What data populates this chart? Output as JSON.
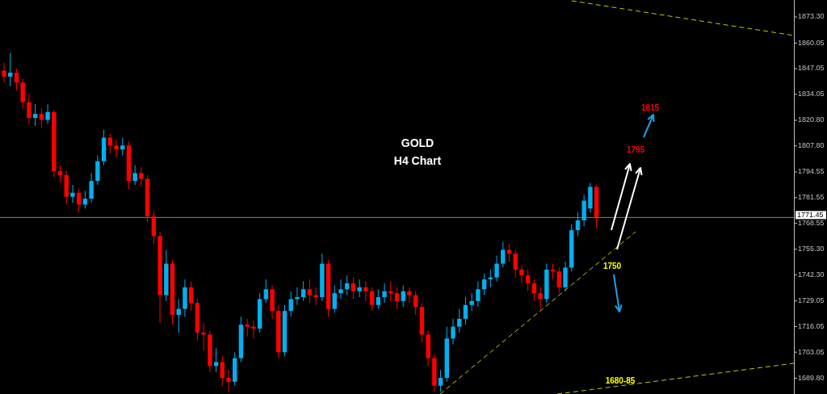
{
  "chart_data": {
    "type": "candlestick",
    "title": "GOLD",
    "subtitle": "H4 Chart",
    "categories": [
      null,
      null,
      null,
      null,
      null,
      null,
      null,
      null,
      null,
      null,
      null,
      null,
      null,
      null,
      null,
      null,
      null,
      null,
      null,
      null,
      null,
      null,
      null,
      null,
      null,
      null,
      null,
      null,
      null,
      null,
      null,
      null,
      null,
      null,
      null,
      null,
      null,
      null,
      null,
      null,
      null,
      null,
      null,
      null,
      null,
      null,
      null,
      null,
      null,
      null,
      null,
      null,
      null,
      null,
      null,
      null,
      null,
      null,
      null,
      null,
      null,
      null,
      null,
      null,
      null,
      null,
      null,
      null,
      null,
      null,
      null,
      null,
      null,
      null,
      null,
      null,
      null,
      null,
      null,
      null,
      null,
      null,
      null,
      null,
      null,
      null,
      null,
      null,
      null,
      null,
      null,
      null,
      null,
      null,
      null,
      null,
      null,
      null,
      null,
      null,
      null,
      null,
      null,
      null,
      null,
      null,
      null,
      null,
      null,
      null,
      null,
      null,
      null,
      null,
      null,
      null,
      null,
      null,
      null,
      null,
      null,
      null,
      null,
      null,
      null,
      null,
      null
    ],
    "ohlc": [
      [
        1846,
        1850,
        1840,
        1843
      ],
      [
        1843,
        1855,
        1838,
        1845
      ],
      [
        1845,
        1847,
        1836,
        1840
      ],
      [
        1840,
        1842,
        1827,
        1830
      ],
      [
        1830,
        1834,
        1819,
        1822
      ],
      [
        1822,
        1829,
        1818,
        1824
      ],
      [
        1824,
        1827,
        1817,
        1821
      ],
      [
        1821,
        1829,
        1819,
        1825
      ],
      [
        1825,
        1826,
        1792,
        1795
      ],
      [
        1795,
        1798,
        1789,
        1793
      ],
      [
        1793,
        1795,
        1778,
        1782
      ],
      [
        1782,
        1788,
        1779,
        1784
      ],
      [
        1784,
        1786,
        1774,
        1778
      ],
      [
        1778,
        1785,
        1776,
        1781
      ],
      [
        1781,
        1794,
        1779,
        1790
      ],
      [
        1790,
        1803,
        1788,
        1800
      ],
      [
        1800,
        1816,
        1798,
        1812
      ],
      [
        1812,
        1814,
        1804,
        1808
      ],
      [
        1808,
        1811,
        1802,
        1806
      ],
      [
        1806,
        1812,
        1803,
        1808
      ],
      [
        1808,
        1810,
        1786,
        1790
      ],
      [
        1790,
        1798,
        1788,
        1794
      ],
      [
        1794,
        1797,
        1787,
        1791
      ],
      [
        1791,
        1793,
        1769,
        1772
      ],
      [
        1772,
        1775,
        1758,
        1762
      ],
      [
        1762,
        1764,
        1718,
        1732
      ],
      [
        1732,
        1755,
        1729,
        1748
      ],
      [
        1748,
        1750,
        1717,
        1722
      ],
      [
        1722,
        1730,
        1713,
        1725
      ],
      [
        1725,
        1740,
        1721,
        1736
      ],
      [
        1736,
        1739,
        1724,
        1728
      ],
      [
        1728,
        1730,
        1709,
        1713
      ],
      [
        1713,
        1718,
        1704,
        1712
      ],
      [
        1712,
        1714,
        1693,
        1696
      ],
      [
        1696,
        1705,
        1693,
        1698
      ],
      [
        1698,
        1701,
        1686,
        1690
      ],
      [
        1690,
        1694,
        1683,
        1688
      ],
      [
        1688,
        1703,
        1686,
        1700
      ],
      [
        1700,
        1721,
        1698,
        1717
      ],
      [
        1717,
        1720,
        1711,
        1716
      ],
      [
        1716,
        1719,
        1710,
        1715
      ],
      [
        1715,
        1733,
        1713,
        1730
      ],
      [
        1730,
        1740,
        1728,
        1735
      ],
      [
        1735,
        1737,
        1720,
        1724
      ],
      [
        1724,
        1727,
        1700,
        1703
      ],
      [
        1703,
        1727,
        1701,
        1724
      ],
      [
        1724,
        1734,
        1721,
        1730
      ],
      [
        1730,
        1736,
        1727,
        1731
      ],
      [
        1731,
        1739,
        1729,
        1735
      ],
      [
        1735,
        1740,
        1728,
        1732
      ],
      [
        1732,
        1736,
        1727,
        1731
      ],
      [
        1731,
        1753,
        1729,
        1748
      ],
      [
        1748,
        1750,
        1721,
        1725
      ],
      [
        1725,
        1737,
        1723,
        1733
      ],
      [
        1733,
        1740,
        1730,
        1735
      ],
      [
        1735,
        1742,
        1732,
        1738
      ],
      [
        1738,
        1741,
        1730,
        1734
      ],
      [
        1734,
        1740,
        1731,
        1736
      ],
      [
        1736,
        1739,
        1729,
        1734
      ],
      [
        1734,
        1736,
        1724,
        1727
      ],
      [
        1727,
        1735,
        1725,
        1731
      ],
      [
        1731,
        1738,
        1728,
        1734
      ],
      [
        1734,
        1739,
        1729,
        1733
      ],
      [
        1733,
        1736,
        1725,
        1729
      ],
      [
        1729,
        1737,
        1726,
        1734
      ],
      [
        1734,
        1736,
        1728,
        1732
      ],
      [
        1732,
        1734,
        1722,
        1726
      ],
      [
        1726,
        1728,
        1708,
        1712
      ],
      [
        1712,
        1714,
        1696,
        1700
      ],
      [
        1700,
        1702,
        1683,
        1686
      ],
      [
        1686,
        1694,
        1683,
        1690
      ],
      [
        1690,
        1716,
        1688,
        1710
      ],
      [
        1710,
        1720,
        1707,
        1716
      ],
      [
        1716,
        1725,
        1713,
        1720
      ],
      [
        1720,
        1731,
        1717,
        1727
      ],
      [
        1727,
        1733,
        1724,
        1729
      ],
      [
        1729,
        1739,
        1726,
        1735
      ],
      [
        1735,
        1743,
        1732,
        1740
      ],
      [
        1740,
        1745,
        1736,
        1741
      ],
      [
        1741,
        1752,
        1739,
        1748
      ],
      [
        1748,
        1759,
        1746,
        1755
      ],
      [
        1755,
        1758,
        1749,
        1753
      ],
      [
        1753,
        1755,
        1741,
        1745
      ],
      [
        1745,
        1747,
        1738,
        1742
      ],
      [
        1742,
        1745,
        1734,
        1738
      ],
      [
        1738,
        1740,
        1729,
        1733
      ],
      [
        1733,
        1736,
        1725,
        1730
      ],
      [
        1730,
        1748,
        1728,
        1745
      ],
      [
        1745,
        1748,
        1740,
        1744
      ],
      [
        1744,
        1746,
        1733,
        1736
      ],
      [
        1736,
        1749,
        1734,
        1746
      ],
      [
        1746,
        1768,
        1744,
        1765
      ],
      [
        1765,
        1774,
        1762,
        1770
      ],
      [
        1770,
        1783,
        1767,
        1780
      ],
      [
        1776,
        1789,
        1774,
        1787
      ],
      [
        1787,
        1788,
        1766,
        1771.45
      ],
      null,
      null,
      null,
      null,
      null,
      null,
      null,
      null,
      null,
      null,
      null,
      null,
      null,
      null,
      null,
      null,
      null,
      null,
      null,
      null,
      null,
      null,
      null,
      null,
      null,
      null,
      null,
      null,
      null,
      null,
      null
    ],
    "ylim": [
      1681.8,
      1881.9
    ],
    "yticks": [
      {
        "value": 1873.3,
        "label": "1873.30"
      },
      {
        "value": 1860.05,
        "label": "1860.05"
      },
      {
        "value": 1847.05,
        "label": "1847.05"
      },
      {
        "value": 1834.05,
        "label": "1834.05"
      },
      {
        "value": 1820.8,
        "label": "1820.80"
      },
      {
        "value": 1807.8,
        "label": "1807.80"
      },
      {
        "value": 1794.55,
        "label": "1794.55"
      },
      {
        "value": 1781.55,
        "label": "1781.55"
      },
      {
        "value": 1768.55,
        "label": "1768.55"
      },
      {
        "value": 1755.3,
        "label": "1755.30"
      },
      {
        "value": 1742.3,
        "label": "1742.30"
      },
      {
        "value": 1729.05,
        "label": "1729.05"
      },
      {
        "value": 1716.05,
        "label": "1716.05"
      },
      {
        "value": 1703.05,
        "label": "1703.05"
      },
      {
        "value": 1689.8,
        "label": "1689.80"
      }
    ],
    "tick_labels": "y",
    "ref_lines": [
      {
        "axis": "y",
        "value": 1771.45,
        "label": "1771.45",
        "color": "#808080"
      }
    ],
    "annotations": [
      "1815",
      "1795",
      "1750",
      "1680-85"
    ]
  }
}
